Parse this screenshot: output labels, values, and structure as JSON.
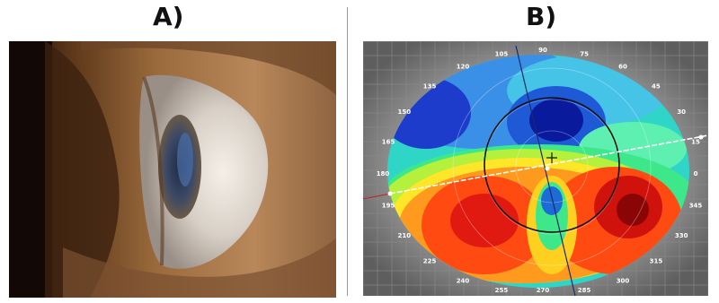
{
  "panels": {
    "a_label": "A)",
    "b_label": "B)"
  },
  "topography": {
    "degree_labels": [
      "90",
      "75",
      "60",
      "45",
      "30",
      "15",
      "0",
      "345",
      "330",
      "315",
      "300",
      "285",
      "270",
      "255",
      "240",
      "225",
      "210",
      "195",
      "180",
      "165",
      "150",
      "135",
      "120",
      "105"
    ]
  }
}
